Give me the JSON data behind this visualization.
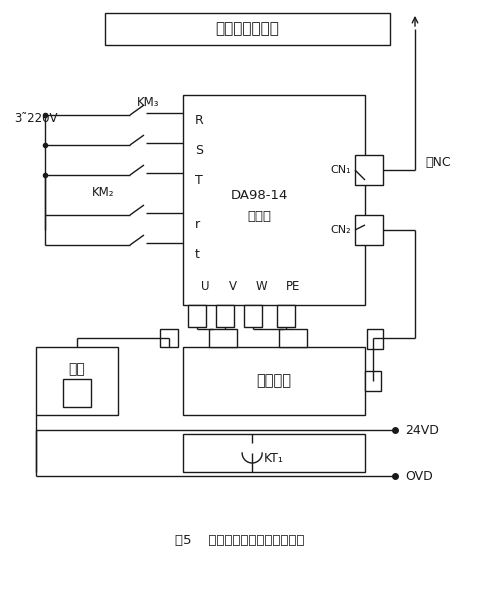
{
  "title_box_text": "伺服驱动和抱闸",
  "caption": "图5    改进后伺服驱动和抱闸控制",
  "voltage_label": "3˜220V",
  "km3_label": "KM₃",
  "km2_label": "KM₂",
  "driver_label1": "DA98-14",
  "driver_label2": "驱动器",
  "cn1_label": "CN₁",
  "cn2_label": "CN₂",
  "nc_label": "去NC",
  "rst_labels": [
    "R",
    "S",
    "T",
    "r",
    "t"
  ],
  "uvwpe_labels": [
    "U",
    "V",
    "W",
    "PE"
  ],
  "motor_label": "伺服电机",
  "brake_label": "抱闸",
  "kt1_label": "KT₁",
  "v24_label": "24VD",
  "ovd_label": "OVD",
  "bg_color": "#ffffff",
  "line_color": "#1a1a1a",
  "figsize": [
    4.79,
    5.9
  ],
  "dpi": 100
}
